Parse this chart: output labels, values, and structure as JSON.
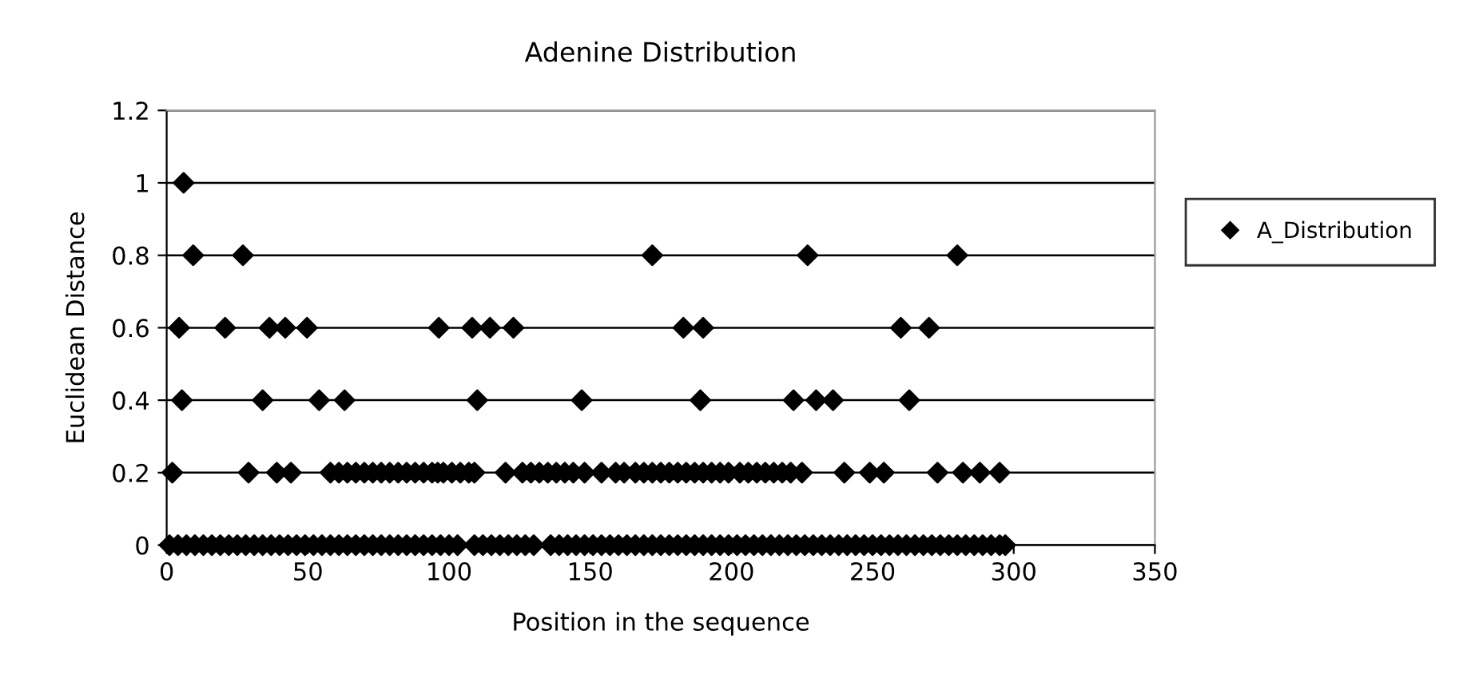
{
  "chart_data": {
    "type": "scatter",
    "title": "Adenine Distribution",
    "xlabel": "Position in the sequence",
    "ylabel": "Euclidean Distance",
    "xlim": [
      0,
      350
    ],
    "xticks": [
      0,
      50,
      100,
      150,
      200,
      250,
      300,
      350
    ],
    "ylim": [
      0,
      1.2
    ],
    "yticks": [
      0,
      {
        "value": 0.2,
        "label": "0.2"
      },
      {
        "value": 0.4,
        "label": "0.4"
      },
      {
        "value": 0.6,
        "label": "0.6"
      },
      {
        "value": 0.8,
        "label": "0.8"
      },
      1,
      {
        "value": 1.2,
        "label": "1.2"
      }
    ],
    "grid": "y",
    "legend": "right",
    "marker": "diamond",
    "series": [
      {
        "name": "A_Distribution",
        "color": "#000000",
        "x": [
          6,
          9.4,
          27,
          172,
          227,
          280,
          4.4,
          20.7,
          36.4,
          42,
          49.7,
          96.4,
          108.2,
          114.5,
          122.8,
          183,
          190,
          260,
          270,
          5.4,
          34,
          54,
          63,
          110,
          147,
          189,
          222,
          230,
          236,
          263,
          2,
          29,
          39,
          44,
          58,
          61,
          64,
          67,
          70,
          73,
          76,
          79,
          82,
          85,
          88,
          91,
          94,
          96,
          98,
          101,
          104,
          107,
          109,
          120,
          126,
          129,
          132,
          135,
          138,
          141,
          144,
          148,
          154,
          159,
          162,
          166,
          169,
          172,
          175,
          178,
          181,
          184,
          187,
          190,
          193,
          196,
          199,
          203,
          206,
          209,
          212,
          215,
          218,
          221,
          225,
          240,
          249,
          254,
          273,
          282,
          288,
          295,
          1,
          4,
          7,
          10,
          13,
          16,
          19,
          22,
          25,
          28,
          31,
          34,
          37,
          40,
          43,
          46,
          49,
          52,
          55,
          58,
          61,
          64,
          67,
          70,
          73,
          76,
          79,
          82,
          85,
          88,
          91,
          94,
          97,
          100,
          103,
          109,
          112,
          115,
          118,
          121,
          124,
          127,
          130,
          136,
          139,
          142,
          145,
          148,
          151,
          154,
          157,
          160,
          163,
          166,
          169,
          172,
          175,
          178,
          181,
          184,
          187,
          190,
          193,
          196,
          199,
          202,
          205,
          208,
          211,
          214,
          217,
          220,
          223,
          226,
          229,
          232,
          235,
          238,
          241,
          244,
          247,
          250,
          253,
          256,
          259,
          262,
          265,
          268,
          271,
          274,
          277,
          280,
          283,
          286,
          289,
          292,
          295,
          297
        ],
        "values": [
          1,
          0.8,
          0.8,
          0.8,
          0.8,
          0.8,
          0.6,
          0.6,
          0.6,
          0.6,
          0.6,
          0.6,
          0.6,
          0.6,
          0.6,
          0.6,
          0.6,
          0.6,
          0.6,
          0.4,
          0.4,
          0.4,
          0.4,
          0.4,
          0.4,
          0.4,
          0.4,
          0.4,
          0.4,
          0.4,
          0.2,
          0.2,
          0.2,
          0.2,
          0.2,
          0.2,
          0.2,
          0.2,
          0.2,
          0.2,
          0.2,
          0.2,
          0.2,
          0.2,
          0.2,
          0.2,
          0.2,
          0.2,
          0.2,
          0.2,
          0.2,
          0.2,
          0.2,
          0.2,
          0.2,
          0.2,
          0.2,
          0.2,
          0.2,
          0.2,
          0.2,
          0.2,
          0.2,
          0.2,
          0.2,
          0.2,
          0.2,
          0.2,
          0.2,
          0.2,
          0.2,
          0.2,
          0.2,
          0.2,
          0.2,
          0.2,
          0.2,
          0.2,
          0.2,
          0.2,
          0.2,
          0.2,
          0.2,
          0.2,
          0.2,
          0.2,
          0.2,
          0.2,
          0.2,
          0.2,
          0.2,
          0.2,
          0,
          0,
          0,
          0,
          0,
          0,
          0,
          0,
          0,
          0,
          0,
          0,
          0,
          0,
          0,
          0,
          0,
          0,
          0,
          0,
          0,
          0,
          0,
          0,
          0,
          0,
          0,
          0,
          0,
          0,
          0,
          0,
          0,
          0,
          0,
          0,
          0,
          0,
          0,
          0,
          0,
          0,
          0,
          0,
          0,
          0,
          0,
          0,
          0,
          0,
          0,
          0,
          0,
          0,
          0,
          0,
          0,
          0,
          0,
          0,
          0,
          0,
          0,
          0,
          0,
          0,
          0,
          0,
          0,
          0,
          0,
          0,
          0,
          0,
          0,
          0,
          0,
          0,
          0,
          0,
          0,
          0,
          0,
          0,
          0,
          0,
          0,
          0,
          0,
          0,
          0,
          0,
          0,
          0,
          0,
          0,
          0,
          0
        ]
      }
    ]
  }
}
